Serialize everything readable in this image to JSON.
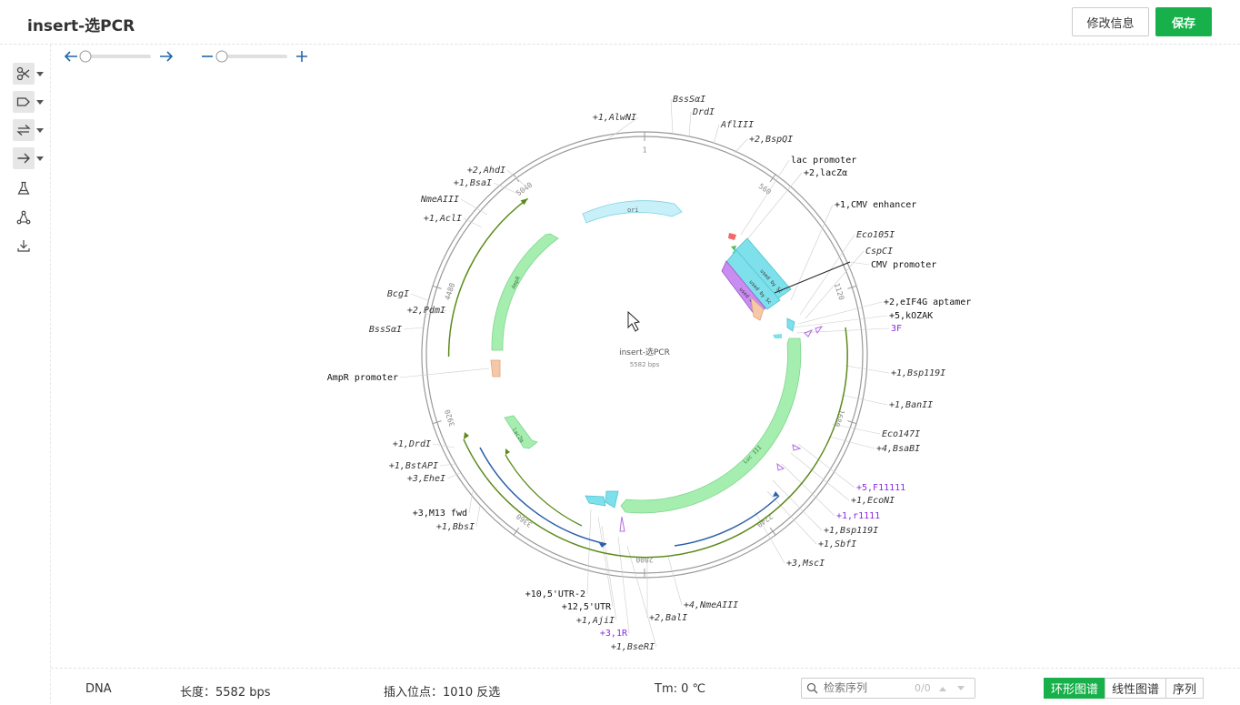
{
  "header": {
    "title": "insert-选PCR",
    "edit_button": "修改信息",
    "save_button": "保存"
  },
  "toolbar": {
    "tools": [
      {
        "icon": "scissors-icon",
        "dropdown": true
      },
      {
        "icon": "tag-icon",
        "dropdown": true
      },
      {
        "icon": "swap-icon",
        "dropdown": true
      },
      {
        "icon": "arrow-right-icon",
        "dropdown": true
      },
      {
        "icon": "flask-icon",
        "dropdown": false
      },
      {
        "icon": "network-icon",
        "dropdown": false
      },
      {
        "icon": "download-icon",
        "dropdown": false
      }
    ]
  },
  "map": {
    "name": "insert-选PCR",
    "length_label": "5582 bps",
    "ticks": [
      "1",
      "560",
      "1120",
      "1680",
      "2240",
      "2800",
      "3360",
      "3920",
      "4480",
      "5040"
    ],
    "features": [
      "ori",
      "AmpR",
      "lacZα",
      "Luc III",
      "used by Sc",
      "used by Sc",
      "used by B"
    ],
    "right_labels": [
      {
        "text": "BssSαI",
        "style": "italic",
        "color": "#333"
      },
      {
        "text": "DrdI",
        "style": "italic",
        "color": "#333"
      },
      {
        "text": "AflIII",
        "style": "italic",
        "color": "#333"
      },
      {
        "text": "+2,BspQI",
        "style": "italic",
        "color": "#333"
      },
      {
        "text": "lac promoter",
        "style": "normal",
        "color": "#111"
      },
      {
        "text": "+2,lacZα",
        "style": "normal",
        "color": "#111"
      },
      {
        "text": "+1,CMV enhancer",
        "style": "normal",
        "color": "#111"
      },
      {
        "text": "Eco105I",
        "style": "italic",
        "color": "#333"
      },
      {
        "text": "CspCI",
        "style": "italic",
        "color": "#333"
      },
      {
        "text": "CMV promoter",
        "style": "normal",
        "color": "#111"
      },
      {
        "text": "+2,eIF4G aptamer",
        "style": "normal",
        "color": "#111"
      },
      {
        "text": "+5,kOZAK",
        "style": "normal",
        "color": "#111"
      },
      {
        "text": "3F",
        "style": "normal",
        "color": "#8a2be2"
      },
      {
        "text": "+1,Bsp119I",
        "style": "italic",
        "color": "#333"
      },
      {
        "text": "+1,BanII",
        "style": "italic",
        "color": "#333"
      },
      {
        "text": "Eco147I",
        "style": "italic",
        "color": "#333"
      },
      {
        "text": "+4,BsaBI",
        "style": "italic",
        "color": "#333"
      },
      {
        "text": "+5,F11111",
        "style": "normal",
        "color": "#8a2be2"
      },
      {
        "text": "+1,EcoNI",
        "style": "italic",
        "color": "#333"
      },
      {
        "text": "+1,r1111",
        "style": "normal",
        "color": "#8a2be2"
      },
      {
        "text": "+1,Bsp119I",
        "style": "italic",
        "color": "#333"
      },
      {
        "text": "+1,SbfI",
        "style": "italic",
        "color": "#333"
      },
      {
        "text": "+3,MscI",
        "style": "italic",
        "color": "#333"
      },
      {
        "text": "+4,NmeAIII",
        "style": "italic",
        "color": "#333"
      },
      {
        "text": "+2,BalI",
        "style": "italic",
        "color": "#333"
      }
    ],
    "left_labels": [
      {
        "text": "+1,AlwNI",
        "style": "italic",
        "color": "#333"
      },
      {
        "text": "+2,AhdI",
        "style": "italic",
        "color": "#333"
      },
      {
        "text": "+1,BsaI",
        "style": "italic",
        "color": "#333"
      },
      {
        "text": "NmeAIII",
        "style": "italic",
        "color": "#333"
      },
      {
        "text": "+1,AclI",
        "style": "italic",
        "color": "#333"
      },
      {
        "text": "BcgI",
        "style": "italic",
        "color": "#333"
      },
      {
        "text": "+2,PdmI",
        "style": "italic",
        "color": "#333"
      },
      {
        "text": "BssSαI",
        "style": "italic",
        "color": "#333"
      },
      {
        "text": "AmpR promoter",
        "style": "normal",
        "color": "#111"
      },
      {
        "text": "+1,DrdI",
        "style": "italic",
        "color": "#333"
      },
      {
        "text": "+1,BstAPI",
        "style": "italic",
        "color": "#333"
      },
      {
        "text": "+3,EheI",
        "style": "italic",
        "color": "#333"
      },
      {
        "text": "+3,M13 fwd",
        "style": "normal",
        "color": "#111"
      },
      {
        "text": "+1,BbsI",
        "style": "italic",
        "color": "#333"
      },
      {
        "text": "+10,5'UTR-2",
        "style": "normal",
        "color": "#111"
      },
      {
        "text": "+12,5'UTR",
        "style": "normal",
        "color": "#111"
      },
      {
        "text": "+1,AjiI",
        "style": "italic",
        "color": "#333"
      },
      {
        "text": "+3,1R",
        "style": "normal",
        "color": "#8a2be2"
      },
      {
        "text": "+1,BseRI",
        "style": "italic",
        "color": "#333"
      }
    ]
  },
  "status": {
    "type": "DNA",
    "length": "长度：5582 bps",
    "insert": "插入位点：1010   反选",
    "tm": "Tm: 0 ℃",
    "search_placeholder": "检索序列",
    "search_count": "0/0",
    "views": [
      "环形图谱",
      "线性图谱",
      "序列"
    ],
    "active_view": "环形图谱"
  },
  "colors": {
    "accent": "#18b04a",
    "arrow": "#2267a8",
    "ori": "#c7f0f8",
    "ampr": "#a6eeb0",
    "cds": "#7ee0ea",
    "promoter": "#f5c9a8",
    "purple": "#8a2be2",
    "primer_olive": "#5c8a1a",
    "primer_blue": "#2a5faa"
  }
}
